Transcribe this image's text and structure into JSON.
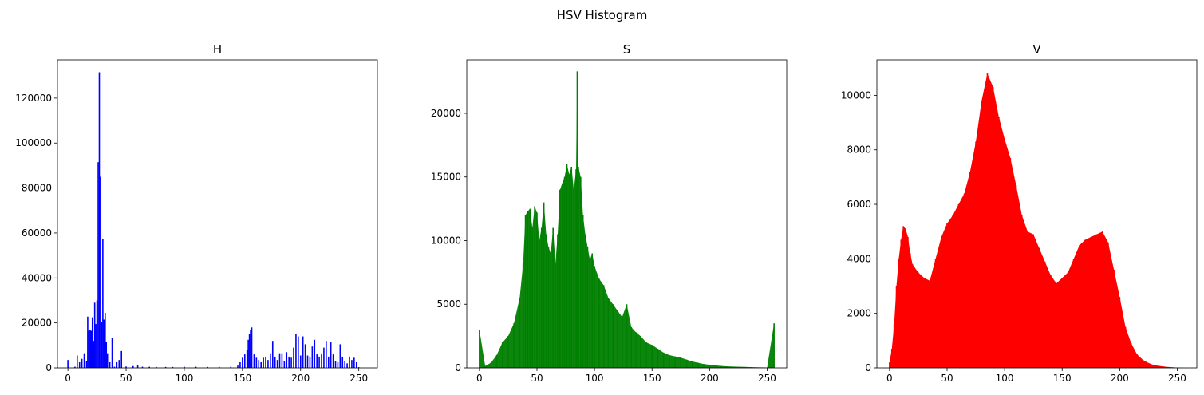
{
  "figure_title": "HSV Histogram",
  "chart_data": [
    {
      "type": "bar",
      "title": "H",
      "xlabel": "",
      "ylabel": "",
      "xlim": [
        -9,
        266
      ],
      "ylim": [
        0,
        137000
      ],
      "xticks": [
        0,
        50,
        100,
        150,
        200,
        250
      ],
      "yticks": [
        0,
        20000,
        40000,
        60000,
        80000,
        100000,
        120000
      ],
      "color": "#0000ff",
      "grid": false,
      "bins_note": "sparse bars at selected hue values",
      "x": [
        0,
        6,
        8,
        10,
        12,
        14,
        16,
        17,
        18,
        19,
        20,
        21,
        22,
        23,
        24,
        25,
        26,
        27,
        28,
        29,
        30,
        31,
        32,
        33,
        34,
        36,
        38,
        40,
        42,
        44,
        46,
        50,
        56,
        60,
        64,
        70,
        76,
        84,
        90,
        100,
        110,
        120,
        130,
        140,
        146,
        148,
        150,
        152,
        154,
        155,
        156,
        157,
        158,
        160,
        162,
        164,
        166,
        168,
        170,
        172,
        174,
        176,
        178,
        180,
        182,
        184,
        186,
        188,
        190,
        192,
        194,
        196,
        198,
        200,
        202,
        204,
        206,
        208,
        210,
        212,
        214,
        216,
        218,
        220,
        222,
        224,
        226,
        228,
        230,
        232,
        234,
        236,
        238,
        240,
        242,
        244,
        246,
        248,
        250
      ],
      "y": [
        3500,
        500,
        5500,
        2500,
        4000,
        6500,
        3000,
        22800,
        16500,
        17000,
        16500,
        22500,
        12000,
        29000,
        19500,
        30000,
        91500,
        131500,
        85000,
        20500,
        57500,
        21500,
        24500,
        11500,
        6500,
        2500,
        13500,
        500,
        2500,
        3500,
        7500,
        600,
        800,
        1200,
        500,
        500,
        400,
        400,
        400,
        500,
        500,
        400,
        400,
        500,
        1000,
        2500,
        4500,
        6000,
        8000,
        12500,
        15000,
        17000,
        18000,
        6000,
        4500,
        3500,
        2500,
        4500,
        5000,
        3500,
        6500,
        12000,
        5000,
        3500,
        6500,
        6500,
        3000,
        7000,
        5000,
        4500,
        9000,
        15000,
        14000,
        5500,
        14000,
        10500,
        5500,
        5000,
        9500,
        12500,
        6000,
        5000,
        6000,
        9000,
        12000,
        5000,
        11500,
        6000,
        3000,
        2500,
        10500,
        5000,
        3000,
        2000,
        5000,
        3500,
        4500,
        2500,
        300
      ]
    },
    {
      "type": "bar",
      "title": "S",
      "xlabel": "",
      "ylabel": "",
      "xlim": [
        -11,
        267
      ],
      "ylim": [
        0,
        24200
      ],
      "xticks": [
        0,
        50,
        100,
        150,
        200,
        250
      ],
      "yticks": [
        0,
        5000,
        10000,
        15000,
        20000
      ],
      "color": "#008000",
      "grid": false,
      "x": [
        0,
        5,
        10,
        15,
        20,
        25,
        30,
        35,
        38,
        40,
        42,
        44,
        46,
        48,
        50,
        52,
        54,
        56,
        58,
        60,
        62,
        64,
        66,
        68,
        70,
        72,
        74,
        76,
        78,
        80,
        82,
        84,
        85,
        86,
        88,
        90,
        92,
        94,
        96,
        98,
        100,
        104,
        108,
        112,
        116,
        120,
        124,
        128,
        132,
        136,
        140,
        145,
        150,
        155,
        160,
        165,
        170,
        175,
        180,
        185,
        190,
        195,
        200,
        210,
        220,
        230,
        240,
        250,
        256
      ],
      "y": [
        3000,
        150,
        400,
        1000,
        2000,
        2500,
        3500,
        5500,
        8200,
        12000,
        12300,
        12500,
        11000,
        12700,
        12200,
        10000,
        11000,
        13000,
        10500,
        9500,
        9000,
        11000,
        8200,
        10500,
        14000,
        14500,
        15000,
        16000,
        15200,
        15800,
        14000,
        15600,
        23300,
        15800,
        15000,
        12000,
        10500,
        9500,
        8500,
        9000,
        8000,
        7000,
        6500,
        5500,
        5000,
        4500,
        4000,
        5000,
        3200,
        2800,
        2500,
        2000,
        1800,
        1500,
        1200,
        1000,
        900,
        800,
        650,
        500,
        400,
        300,
        250,
        150,
        100,
        80,
        50,
        30,
        3500
      ]
    },
    {
      "type": "bar",
      "title": "V",
      "xlabel": "",
      "ylabel": "",
      "xlim": [
        -11,
        267
      ],
      "ylim": [
        0,
        11300
      ],
      "xticks": [
        0,
        50,
        100,
        150,
        200,
        250
      ],
      "yticks": [
        0,
        2000,
        4000,
        6000,
        8000,
        10000
      ],
      "color": "#ff0000",
      "grid": false,
      "x": [
        0,
        2,
        4,
        6,
        8,
        10,
        12,
        14,
        16,
        18,
        20,
        25,
        30,
        35,
        40,
        45,
        50,
        55,
        60,
        65,
        70,
        75,
        80,
        85,
        90,
        95,
        100,
        105,
        110,
        115,
        120,
        125,
        130,
        135,
        140,
        145,
        150,
        155,
        160,
        165,
        170,
        175,
        180,
        185,
        190,
        195,
        200,
        205,
        210,
        215,
        220,
        225,
        230,
        240,
        250,
        255
      ],
      "y": [
        200,
        700,
        1600,
        3000,
        4000,
        4700,
        5200,
        5100,
        4800,
        4200,
        3800,
        3500,
        3300,
        3200,
        4000,
        4800,
        5300,
        5600,
        6000,
        6400,
        7200,
        8300,
        9800,
        10800,
        10300,
        9200,
        8400,
        7700,
        6700,
        5600,
        5000,
        4900,
        4400,
        3900,
        3400,
        3100,
        3300,
        3500,
        4000,
        4500,
        4700,
        4800,
        4900,
        5000,
        4600,
        3600,
        2600,
        1500,
        900,
        500,
        300,
        180,
        100,
        40,
        10,
        5
      ]
    }
  ]
}
